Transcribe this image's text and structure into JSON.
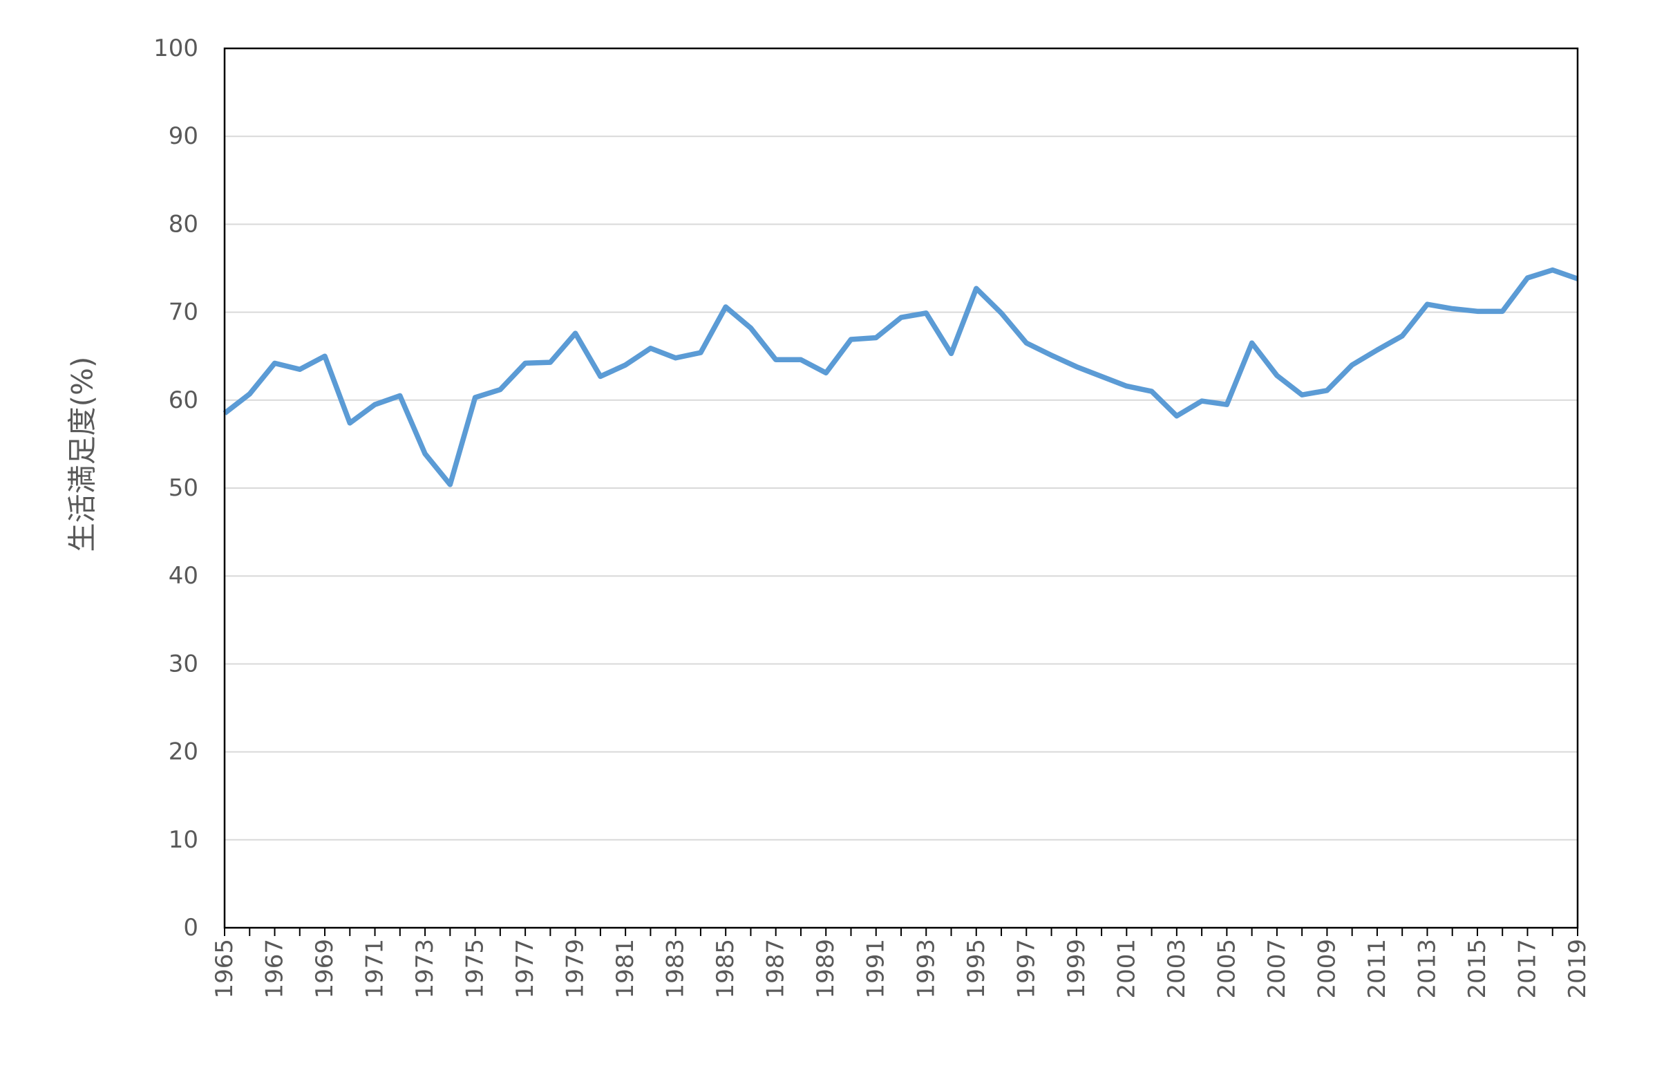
{
  "chart_data": {
    "type": "line",
    "title": "",
    "xlabel": "",
    "ylabel": "生活満足度(%)",
    "xlim": [
      1965,
      2019
    ],
    "ylim": [
      0,
      100
    ],
    "grid": true,
    "yticks": [
      0,
      10,
      20,
      30,
      40,
      50,
      60,
      70,
      80,
      90,
      100
    ],
    "xtick_labels": [
      "1965",
      "1967",
      "1969",
      "1971",
      "1973",
      "1975",
      "1977",
      "1979",
      "1981",
      "1983",
      "1985",
      "1987",
      "1989",
      "1991",
      "1993",
      "1995",
      "1997",
      "1999",
      "2001",
      "2003",
      "2005",
      "2007",
      "2009",
      "2011",
      "2013",
      "2015",
      "2017",
      "2019"
    ],
    "x": [
      1965,
      1966,
      1967,
      1968,
      1969,
      1970,
      1971,
      1972,
      1973,
      1974,
      1975,
      1976,
      1977,
      1978,
      1979,
      1980,
      1981,
      1982,
      1983,
      1984,
      1985,
      1986,
      1987,
      1988,
      1989,
      1990,
      1991,
      1992,
      1993,
      1994,
      1995,
      1996,
      1997,
      1998,
      1999,
      2000,
      2001,
      2002,
      2003,
      2004,
      2005,
      2006,
      2007,
      2008,
      2009,
      2010,
      2011,
      2012,
      2013,
      2014,
      2015,
      2016,
      2017,
      2018,
      2019
    ],
    "series": [
      {
        "values": [
          58.5,
          60.7,
          64.2,
          63.5,
          65.0,
          57.4,
          59.5,
          60.5,
          53.9,
          50.4,
          60.3,
          61.2,
          64.2,
          64.3,
          67.6,
          62.7,
          64.0,
          65.9,
          64.8,
          65.4,
          70.6,
          68.2,
          64.6,
          64.6,
          63.1,
          66.9,
          67.1,
          69.4,
          69.9,
          65.3,
          72.7,
          69.9,
          66.5,
          65.1,
          63.8,
          62.7,
          61.6,
          61.0,
          58.2,
          59.9,
          59.5,
          66.5,
          62.8,
          60.6,
          61.1,
          64.0,
          65.7,
          67.3,
          70.9,
          70.4,
          70.1,
          70.1,
          73.9,
          74.8,
          73.8
        ],
        "color": "#5B9BD5"
      }
    ],
    "grid_color": "#D9D9D9",
    "axis_color": "#000000",
    "text_color": "#595959"
  }
}
